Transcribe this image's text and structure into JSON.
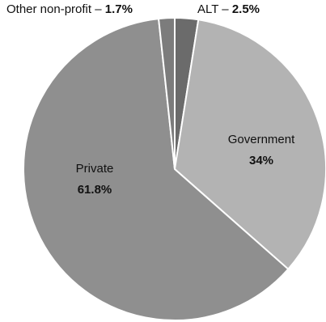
{
  "chart_data": {
    "type": "pie",
    "slices": [
      {
        "label": "ALT",
        "value": 2.5,
        "value_label": "2.5%",
        "color": "#6b6b6b"
      },
      {
        "label": "Government",
        "value": 34,
        "value_label": "34%",
        "color": "#b3b3b3"
      },
      {
        "label": "Private",
        "value": 61.8,
        "value_label": "61.8%",
        "color": "#8f8f8f"
      },
      {
        "label": "Other non-profit",
        "value": 1.7,
        "value_label": "1.7%",
        "color": "#7c7c7c"
      }
    ],
    "title": "",
    "legend": "none"
  }
}
